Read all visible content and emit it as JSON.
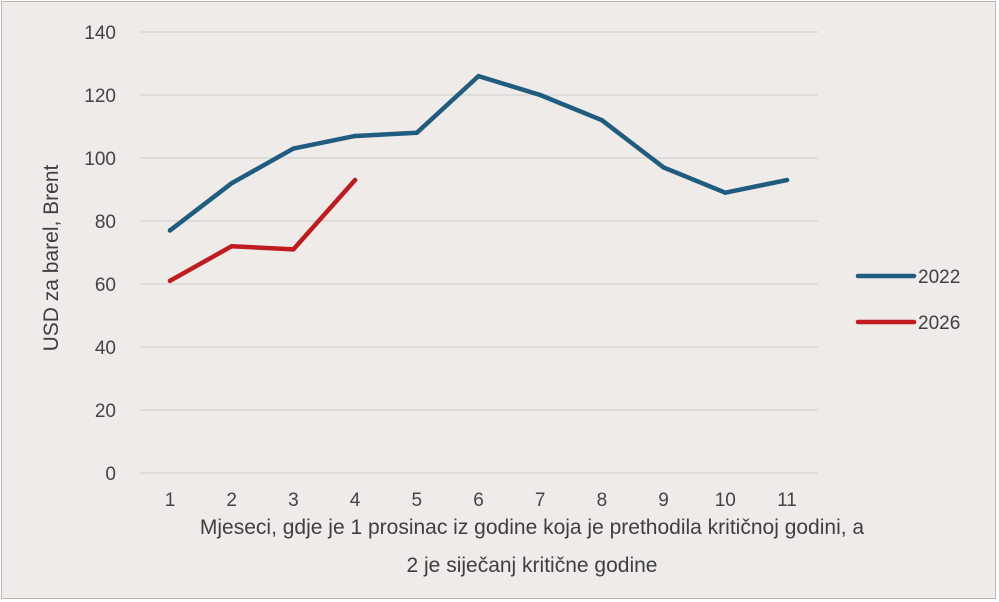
{
  "chart_data": {
    "type": "line",
    "title": "",
    "ylabel": "USD za barel, Brent",
    "xlabel_lines": [
      "Mjeseci, gdje je 1 prosinac iz godine koja je prethodila kritičnoj godini, a",
      "2 je siječanj kritične godine"
    ],
    "x": [
      1,
      2,
      3,
      4,
      5,
      6,
      7,
      8,
      9,
      10,
      11
    ],
    "ylim": [
      0,
      140
    ],
    "yticks": [
      0,
      20,
      40,
      60,
      80,
      100,
      120,
      140
    ],
    "grid": true,
    "legend_position": "right",
    "series": [
      {
        "name": "2022",
        "color": "#1f5c7f",
        "x": [
          1,
          2,
          3,
          4,
          5,
          6,
          7,
          8,
          9,
          10,
          11
        ],
        "values": [
          77,
          92,
          103,
          107,
          108,
          126,
          120,
          112,
          97,
          89,
          93
        ]
      },
      {
        "name": "2026",
        "color": "#c01b1f",
        "x": [
          1,
          2,
          3,
          4
        ],
        "values": [
          61,
          72,
          71,
          93
        ]
      }
    ]
  }
}
